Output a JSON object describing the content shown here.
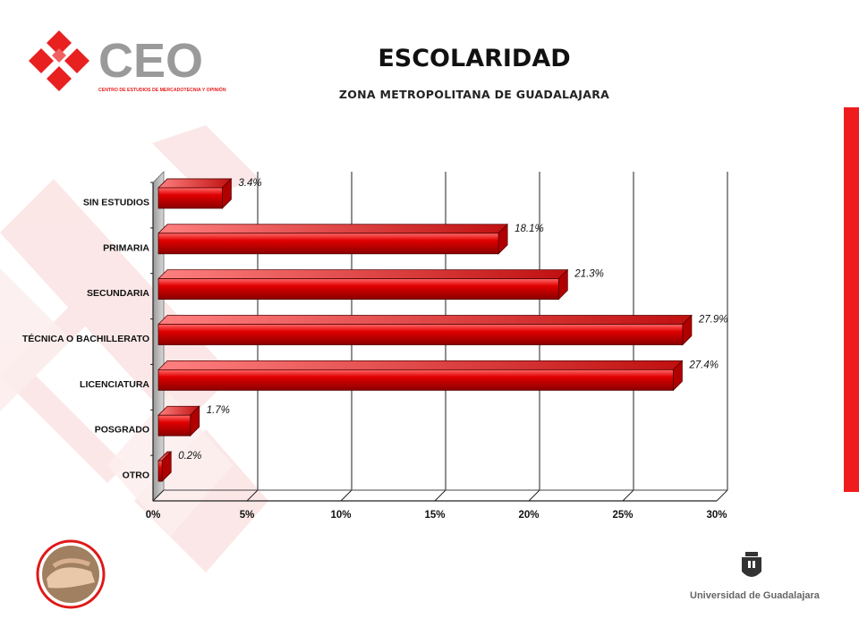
{
  "header": {
    "logo_text": "CEO",
    "logo_caption": "CENTRO DE ESTUDIOS DE MERCADOTECNIA Y OPINIÓN",
    "title": "ESCOLARIDAD",
    "subtitle": "ZONA METROPOLITANA DE GUADALAJARA"
  },
  "footer": {
    "institution": "Universidad de Guadalajara"
  },
  "colors": {
    "accent_red": "#ee1c1c",
    "bar_red": "#d40000",
    "bar_dark": "#7a0000"
  },
  "chart_data": {
    "type": "bar",
    "orientation": "horizontal",
    "style": "3d",
    "categories": [
      "SIN ESTUDIOS",
      "PRIMARIA",
      "SECUNDARIA",
      "TÉCNICA O BACHILLERATO",
      "LICENCIATURA",
      "POSGRADO",
      "OTRO"
    ],
    "values": [
      3.4,
      18.1,
      21.3,
      27.9,
      27.4,
      1.7,
      0.2
    ],
    "value_labels": [
      "3.4%",
      "18.1%",
      "21.3%",
      "27.9%",
      "27.4%",
      "1.7%",
      "0.2%"
    ],
    "xticks": [
      "0%",
      "5%",
      "10%",
      "15%",
      "20%",
      "25%",
      "30%"
    ],
    "xlim": [
      0,
      30
    ],
    "grid": true,
    "legend": "none"
  }
}
